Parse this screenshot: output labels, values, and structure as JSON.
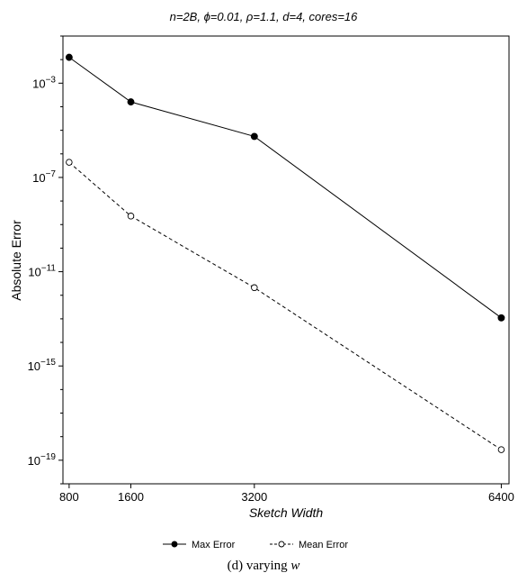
{
  "chart_data": {
    "type": "line",
    "title": "n=2B, ϕ=0.01, ρ=1.1, d=4, cores=16",
    "xlabel": "Sketch Width",
    "ylabel": "Absolute Error",
    "x_scale": "linear",
    "y_scale": "log",
    "xlim": [
      720,
      6500
    ],
    "ylim": [
      1e-20,
      0.1
    ],
    "x_ticks": [
      800,
      1600,
      3200,
      6400
    ],
    "x_tick_labels": [
      "800",
      "1600",
      "3200",
      "6400"
    ],
    "y_tick_exponents": [
      -3,
      -7,
      -11,
      -15,
      -19
    ],
    "y_tick_base": "10",
    "grid": false,
    "legend_position": "bottom",
    "series": [
      {
        "name": "Max Error",
        "marker": "filled-circle",
        "line_style": "solid",
        "x": [
          800,
          1600,
          3200,
          6400
        ],
        "y": [
          0.0125,
          0.00016,
          5.5e-06,
          1.1e-13
        ]
      },
      {
        "name": "Mean Error",
        "marker": "open-circle",
        "line_style": "dashed",
        "x": [
          800,
          1600,
          3200,
          6400
        ],
        "y": [
          4.4e-07,
          2.3e-09,
          2.1e-12,
          2.8e-19
        ]
      }
    ]
  },
  "caption": {
    "prefix": "(d) varying ",
    "variable": "w"
  }
}
